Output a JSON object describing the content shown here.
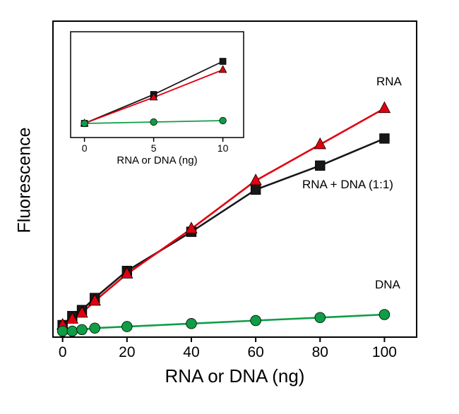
{
  "chart_data": [
    {
      "id": "main",
      "type": "line",
      "title": "",
      "xlabel": "RNA or DNA (ng)",
      "ylabel": "Fluorescence",
      "xlim": [
        -3,
        110
      ],
      "ylim": [
        0,
        105
      ],
      "xticks": [
        0,
        20,
        40,
        60,
        80,
        100
      ],
      "yticks": [],
      "grid": false,
      "legend_position": "annotations-right",
      "x": [
        0,
        3,
        6,
        10,
        20,
        40,
        60,
        80,
        100
      ],
      "series": [
        {
          "name": "RNA + DNA (1:1)",
          "marker": "square",
          "color": "#171717",
          "values": [
            4,
            7,
            9,
            13,
            22,
            35,
            49,
            57,
            66
          ]
        },
        {
          "name": "RNA",
          "marker": "triangle",
          "color": "#e1000f",
          "values": [
            4,
            6,
            8,
            12,
            21,
            36,
            52,
            64,
            76
          ]
        },
        {
          "name": "DNA",
          "marker": "circle",
          "color": "#0f9d46",
          "values": [
            2,
            2,
            2.5,
            3,
            3.5,
            4.5,
            5.5,
            6.5,
            7.5
          ]
        }
      ]
    },
    {
      "id": "inset",
      "type": "line",
      "title": "",
      "xlabel": "RNA or DNA (ng)",
      "ylabel": "",
      "xlim": [
        -1,
        11.5
      ],
      "ylim": [
        0,
        15
      ],
      "xticks": [
        0,
        5,
        10
      ],
      "yticks": [],
      "grid": false,
      "legend_position": "none",
      "x": [
        0,
        5,
        10
      ],
      "series": [
        {
          "name": "RNA + DNA (1:1)",
          "marker": "square",
          "color": "#171717",
          "values": [
            2,
            6.1,
            10.8
          ]
        },
        {
          "name": "RNA",
          "marker": "triangle",
          "color": "#e1000f",
          "values": [
            2,
            5.7,
            9.6
          ]
        },
        {
          "name": "DNA",
          "marker": "circle",
          "color": "#0f9d46",
          "values": [
            2,
            2.2,
            2.4
          ]
        }
      ]
    }
  ],
  "colors": {
    "rna": "#e1000f",
    "rna_dna": "#171717",
    "dna": "#0f9d46",
    "frame": "#000000",
    "background": "#ffffff"
  }
}
